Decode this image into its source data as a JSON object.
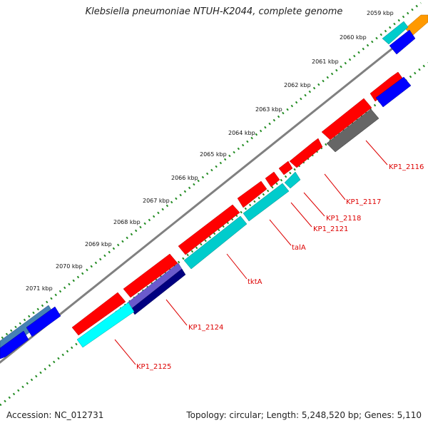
{
  "title": "Klebsiella pneumoniae NTUH-K2044, complete genome",
  "accession": "Accession: NC_012731",
  "topology": "Topology: circular; Length: 5,248,520 bp; Genes: 5,110",
  "kbp_labels": [
    "2059 kbp",
    "2060 kbp",
    "2061 kbp",
    "2062 kbp",
    "2063 kbp",
    "2064 kbp",
    "2065 kbp",
    "2066 kbp",
    "2067 kbp",
    "2068 kbp",
    "2069 kbp",
    "2070 kbp",
    "2071 kbp"
  ],
  "gene_labels": [
    "KP1_2116",
    "KP1_2117",
    "KP1_2118",
    "KP1_2121",
    "talA",
    "tktA",
    "KP1_2124",
    "KP1_2125"
  ],
  "colors": {
    "red": "#ff0000",
    "blue": "#0000ff",
    "cyan": "#00cccc",
    "gray": "#666666",
    "orange": "#ff9900",
    "steelblue": "#4682b4",
    "slate": "#6a5acd",
    "navy": "#000080",
    "tick": "#228b22",
    "backbone": "#808080",
    "label": "#dd0000"
  }
}
